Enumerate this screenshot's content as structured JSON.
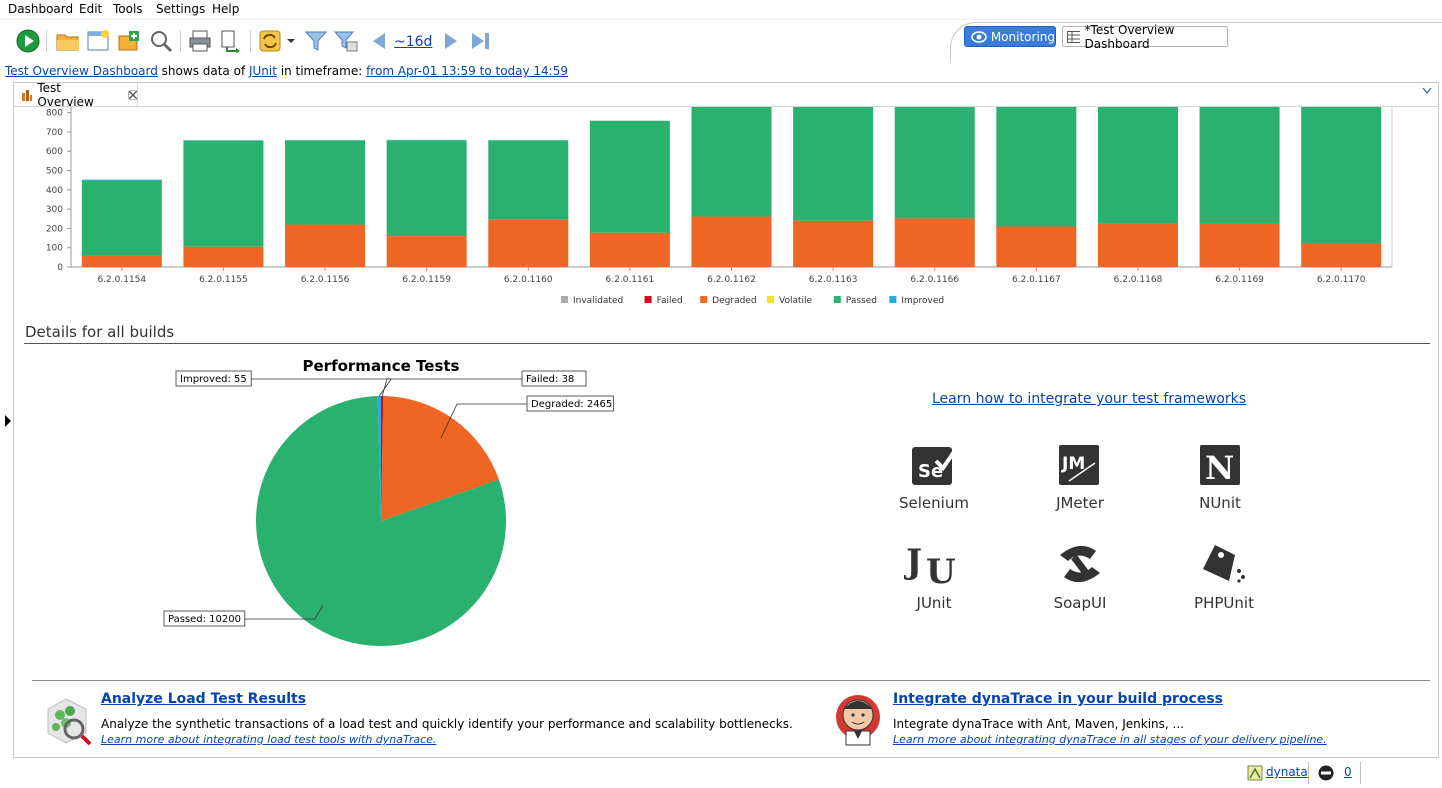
{
  "menu": [
    "Dashboard",
    "Edit",
    "Tools",
    "Settings",
    "Help"
  ],
  "toolbar": {
    "range_label": "~16d"
  },
  "perspective": {
    "monitoring": "Monitoring",
    "dashboard": "*Test Overview Dashboard"
  },
  "info": {
    "dashboard_link": "Test Overview Dashboard",
    "text1": " shows data of ",
    "source_link": "JUnit",
    "text2": " in timeframe: ",
    "timeframe_link": "from Apr-01 13:59 to today 14:59"
  },
  "tab": {
    "label": "Test Overview"
  },
  "chart_data": [
    {
      "type": "bar",
      "stacked": true,
      "categories": [
        "6.2.0.1154",
        "6.2.0.1155",
        "6.2.0.1156",
        "6.2.0.1159",
        "6.2.0.1160",
        "6.2.0.1161",
        "6.2.0.1162",
        "6.2.0.1163",
        "6.2.0.1166",
        "6.2.0.1167",
        "6.2.0.1168",
        "6.2.0.1169",
        "6.2.0.1170"
      ],
      "ylim": [
        0,
        850
      ],
      "yticks": [
        0,
        100,
        200,
        300,
        400,
        500,
        600,
        700,
        800
      ],
      "series": [
        {
          "name": "Invalidated",
          "color": "#aaaaaa",
          "values": [
            0,
            0,
            0,
            0,
            0,
            0,
            0,
            0,
            0,
            0,
            0,
            0,
            0
          ]
        },
        {
          "name": "Failed",
          "color": "#e2001a",
          "values": [
            0,
            0,
            0,
            0,
            0,
            0,
            0,
            0,
            0,
            0,
            0,
            0,
            0
          ]
        },
        {
          "name": "Degraded",
          "color": "#ef6523",
          "values": [
            60,
            105,
            220,
            160,
            245,
            178,
            262,
            240,
            252,
            210,
            225,
            228,
            122
          ]
        },
        {
          "name": "Volatile",
          "color": "#f5e11c",
          "values": [
            0,
            0,
            0,
            0,
            0,
            0,
            0,
            0,
            0,
            0,
            0,
            0,
            0
          ]
        },
        {
          "name": "Passed",
          "color": "#2ab06f",
          "values": [
            388,
            550,
            437,
            497,
            412,
            580,
            600,
            620,
            610,
            650,
            640,
            640,
            740
          ]
        },
        {
          "name": "Improved",
          "color": "#2aa8e0",
          "values": [
            5,
            2,
            0,
            2,
            0,
            0,
            0,
            0,
            0,
            0,
            0,
            0,
            0
          ]
        }
      ],
      "legend_position": "bottom",
      "grid": false
    },
    {
      "type": "pie",
      "title": "Performance Tests",
      "slices": [
        {
          "label": "Failed",
          "value": 38,
          "color": "#e2001a"
        },
        {
          "label": "Degraded",
          "value": 2465,
          "color": "#ef6523"
        },
        {
          "label": "Passed",
          "value": 10200,
          "color": "#2ab06f"
        },
        {
          "label": "Improved",
          "value": 55,
          "color": "#2aa8e0"
        }
      ],
      "labels": [
        "Improved: 55",
        "Failed: 38",
        "Degraded: 2465",
        "Passed: 10200"
      ]
    }
  ],
  "details": {
    "title": "Details for all builds"
  },
  "integrate": {
    "link": "Learn how to integrate your test frameworks",
    "frameworks": [
      "Selenium",
      "JMeter",
      "NUnit",
      "JUnit",
      "SoapUI",
      "PHPUnit"
    ]
  },
  "cards": {
    "load": {
      "title": "Analyze Load Test Results",
      "text": "Analyze the synthetic transactions of a load test and quickly identify your performance and scalability bottlenecks.",
      "link": "Learn more about integrating load test tools with dynaTrace."
    },
    "build": {
      "title": "Integrate dynaTrace in your build process",
      "text": "Integrate dynaTrace with Ant, Maven, Jenkins, ...",
      "link": "Learn more about integrating dynaTrace in all stages of your delivery pipeline."
    }
  },
  "status": {
    "user": "dynata",
    "count": "0"
  },
  "colors": {
    "accent": "#3b7bd9",
    "passed": "#2ab06f",
    "degraded": "#ef6523"
  }
}
